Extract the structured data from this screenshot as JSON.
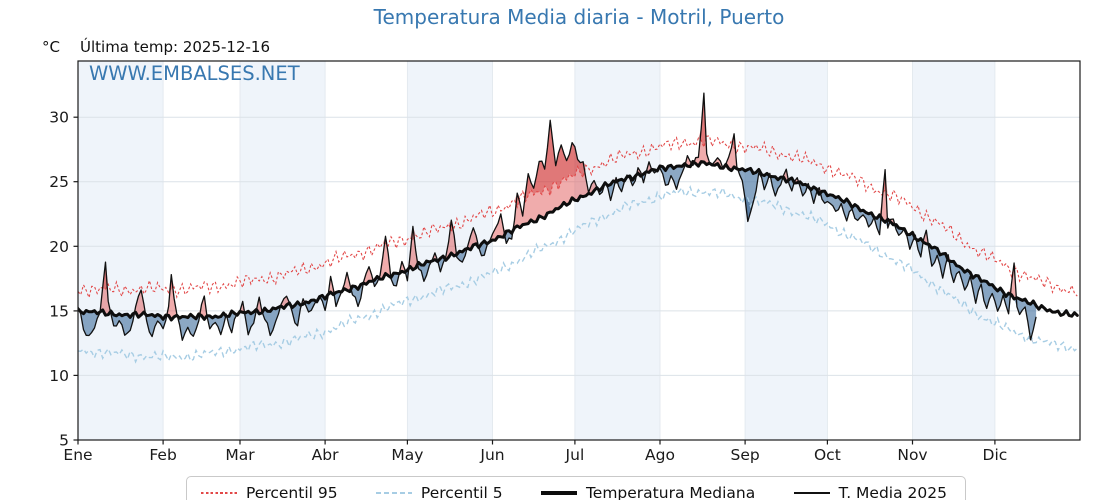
{
  "title": "Temperatura Media diaria - Motril, Puerto",
  "title_color": "#3878b0",
  "header": {
    "unit_label": "°C",
    "last_temp_label": "Última temp: 2025-12-16"
  },
  "watermark": {
    "text": "WWW.EMBALSES.NET",
    "color": "#3878b0"
  },
  "legend": {
    "items": [
      {
        "label": "Percentil 95",
        "style": "p95"
      },
      {
        "label": "Percentil 5",
        "style": "p5"
      },
      {
        "label": "Temperatura Mediana",
        "style": "median"
      },
      {
        "label": "T. Media 2025",
        "style": "t2025"
      }
    ]
  },
  "chart_data": {
    "type": "line",
    "title": "Temperatura Media diaria - Motril, Puerto",
    "ylabel": "°C",
    "x_axis": {
      "tick_labels": [
        "Ene",
        "Feb",
        "Mar",
        "Abr",
        "May",
        "Jun",
        "Jul",
        "Ago",
        "Sep",
        "Oct",
        "Nov",
        "Dic"
      ],
      "month_start_days": [
        0,
        31,
        59,
        90,
        120,
        151,
        181,
        212,
        243,
        273,
        304,
        334
      ],
      "days_in_year": 365
    },
    "y_axis": {
      "ticks": [
        5,
        10,
        15,
        20,
        25,
        30
      ],
      "range": [
        5,
        34.35
      ],
      "unit": "°C"
    },
    "plot_style": {
      "band_colors": [
        "#eff4fa",
        "#ffffff"
      ],
      "hgrid_color": "#dce2e8",
      "vgrid_color": "#e2e8ee",
      "spine_color": "#1a1a1a",
      "tick_label_color": "#1a1a1a"
    },
    "fills": {
      "above_median": "rgba(222,70,70,0.45)",
      "above_p95": "rgba(200,42,42,0.40)",
      "below_median": "rgba(70,115,160,0.62)",
      "below_p5": "rgba(38,80,128,0.45)"
    },
    "jitter": {
      "median": 0.3,
      "p95": 0.7,
      "p5": 0.55,
      "t2025": 0.32
    },
    "series": [
      {
        "id": "median",
        "name": "Temperatura Mediana",
        "color": "#0d0d0d",
        "line": "solid-thick",
        "keypoints": [
          [
            0,
            15.0
          ],
          [
            10,
            14.8
          ],
          [
            20,
            14.7
          ],
          [
            31,
            14.6
          ],
          [
            40,
            14.5
          ],
          [
            50,
            14.6
          ],
          [
            59,
            14.8
          ],
          [
            70,
            15.1
          ],
          [
            80,
            15.5
          ],
          [
            90,
            16.1
          ],
          [
            100,
            16.8
          ],
          [
            110,
            17.5
          ],
          [
            120,
            18.2
          ],
          [
            130,
            18.9
          ],
          [
            140,
            19.6
          ],
          [
            151,
            20.5
          ],
          [
            160,
            21.4
          ],
          [
            170,
            22.4
          ],
          [
            181,
            23.6
          ],
          [
            190,
            24.5
          ],
          [
            200,
            25.3
          ],
          [
            212,
            26.0
          ],
          [
            220,
            26.3
          ],
          [
            228,
            26.4
          ],
          [
            235,
            26.2
          ],
          [
            243,
            25.9
          ],
          [
            250,
            25.6
          ],
          [
            258,
            25.2
          ],
          [
            265,
            24.7
          ],
          [
            273,
            24.1
          ],
          [
            280,
            23.4
          ],
          [
            288,
            22.6
          ],
          [
            296,
            21.8
          ],
          [
            304,
            20.9
          ],
          [
            312,
            19.8
          ],
          [
            320,
            18.6
          ],
          [
            328,
            17.5
          ],
          [
            334,
            16.8
          ],
          [
            342,
            16.0
          ],
          [
            350,
            15.3
          ],
          [
            357,
            14.9
          ],
          [
            364,
            14.6
          ]
        ]
      },
      {
        "id": "p95",
        "name": "Percentil 95",
        "color": "#e24848",
        "line": "dotted",
        "derived_from": "median",
        "offset_keypoints": [
          [
            0,
            1.7
          ],
          [
            31,
            2.1
          ],
          [
            59,
            2.4
          ],
          [
            90,
            2.6
          ],
          [
            120,
            2.4
          ],
          [
            151,
            2.2
          ],
          [
            181,
            1.9
          ],
          [
            212,
            1.7
          ],
          [
            243,
            1.8
          ],
          [
            273,
            2.0
          ],
          [
            304,
            2.2
          ],
          [
            334,
            2.1
          ],
          [
            364,
            1.9
          ]
        ]
      },
      {
        "id": "p5",
        "name": "Percentil 5",
        "color": "#a7cde4",
        "line": "dashed",
        "derived_from": "median",
        "offset_keypoints": [
          [
            0,
            -3.0
          ],
          [
            31,
            -3.2
          ],
          [
            59,
            -2.7
          ],
          [
            90,
            -2.7
          ],
          [
            120,
            -2.4
          ],
          [
            151,
            -2.6
          ],
          [
            181,
            -2.4
          ],
          [
            212,
            -2.1
          ],
          [
            243,
            -2.2
          ],
          [
            273,
            -2.4
          ],
          [
            304,
            -2.8
          ],
          [
            334,
            -2.8
          ],
          [
            364,
            -2.5
          ]
        ]
      },
      {
        "id": "t2025",
        "name": "T. Media 2025",
        "color": "#111111",
        "line": "solid-thin",
        "last_day": 349,
        "keypoints": [
          [
            0,
            15.3
          ],
          [
            2,
            13.6
          ],
          [
            4,
            12.9
          ],
          [
            6,
            13.8
          ],
          [
            8,
            15.0
          ],
          [
            10,
            18.7
          ],
          [
            11,
            16.0
          ],
          [
            13,
            13.6
          ],
          [
            15,
            14.3
          ],
          [
            17,
            13.1
          ],
          [
            19,
            13.4
          ],
          [
            21,
            15.2
          ],
          [
            23,
            16.9
          ],
          [
            25,
            14.1
          ],
          [
            27,
            13.1
          ],
          [
            29,
            14.3
          ],
          [
            31,
            13.6
          ],
          [
            33,
            15.1
          ],
          [
            34,
            17.7
          ],
          [
            36,
            14.6
          ],
          [
            38,
            12.9
          ],
          [
            40,
            13.7
          ],
          [
            42,
            13.0
          ],
          [
            44,
            14.4
          ],
          [
            46,
            16.2
          ],
          [
            48,
            13.4
          ],
          [
            50,
            14.2
          ],
          [
            52,
            13.1
          ],
          [
            54,
            14.6
          ],
          [
            56,
            13.4
          ],
          [
            58,
            14.9
          ],
          [
            60,
            15.6
          ],
          [
            62,
            13.3
          ],
          [
            64,
            14.1
          ],
          [
            66,
            15.9
          ],
          [
            68,
            14.3
          ],
          [
            70,
            13.2
          ],
          [
            72,
            14.0
          ],
          [
            74,
            15.6
          ],
          [
            76,
            16.3
          ],
          [
            78,
            14.9
          ],
          [
            80,
            13.8
          ],
          [
            82,
            16.1
          ],
          [
            84,
            14.7
          ],
          [
            86,
            15.4
          ],
          [
            88,
            16.2
          ],
          [
            90,
            15.0
          ],
          [
            92,
            17.6
          ],
          [
            94,
            15.6
          ],
          [
            96,
            16.4
          ],
          [
            98,
            17.9
          ],
          [
            100,
            16.3
          ],
          [
            102,
            15.3
          ],
          [
            104,
            17.0
          ],
          [
            106,
            18.6
          ],
          [
            108,
            16.9
          ],
          [
            110,
            17.7
          ],
          [
            112,
            20.9
          ],
          [
            114,
            17.6
          ],
          [
            116,
            16.7
          ],
          [
            118,
            18.9
          ],
          [
            120,
            17.3
          ],
          [
            122,
            21.4
          ],
          [
            124,
            18.3
          ],
          [
            126,
            17.5
          ],
          [
            128,
            18.4
          ],
          [
            130,
            19.6
          ],
          [
            132,
            18.1
          ],
          [
            134,
            19.1
          ],
          [
            136,
            21.9
          ],
          [
            138,
            19.3
          ],
          [
            140,
            18.6
          ],
          [
            142,
            20.1
          ],
          [
            144,
            21.6
          ],
          [
            146,
            19.9
          ],
          [
            148,
            19.2
          ],
          [
            150,
            20.6
          ],
          [
            152,
            21.2
          ],
          [
            154,
            22.4
          ],
          [
            156,
            20.3
          ],
          [
            158,
            20.6
          ],
          [
            160,
            24.0
          ],
          [
            162,
            22.6
          ],
          [
            164,
            25.6
          ],
          [
            166,
            24.4
          ],
          [
            168,
            26.6
          ],
          [
            170,
            26.0
          ],
          [
            172,
            29.5
          ],
          [
            174,
            26.4
          ],
          [
            176,
            27.9
          ],
          [
            178,
            26.6
          ],
          [
            180,
            28.1
          ],
          [
            182,
            26.9
          ],
          [
            184,
            26.3
          ],
          [
            186,
            24.2
          ],
          [
            188,
            25.1
          ],
          [
            190,
            23.9
          ],
          [
            192,
            24.9
          ],
          [
            194,
            23.8
          ],
          [
            196,
            25.2
          ],
          [
            198,
            24.3
          ],
          [
            200,
            25.6
          ],
          [
            202,
            24.6
          ],
          [
            204,
            25.9
          ],
          [
            206,
            25.1
          ],
          [
            208,
            26.4
          ],
          [
            210,
            25.7
          ],
          [
            212,
            26.2
          ],
          [
            214,
            24.8
          ],
          [
            216,
            25.3
          ],
          [
            218,
            24.6
          ],
          [
            220,
            25.5
          ],
          [
            222,
            26.9
          ],
          [
            224,
            26.3
          ],
          [
            226,
            27.0
          ],
          [
            228,
            31.7
          ],
          [
            229,
            27.2
          ],
          [
            231,
            26.3
          ],
          [
            233,
            26.9
          ],
          [
            235,
            26.1
          ],
          [
            237,
            26.6
          ],
          [
            239,
            28.8
          ],
          [
            240,
            25.9
          ],
          [
            242,
            25.2
          ],
          [
            244,
            22.0
          ],
          [
            246,
            23.4
          ],
          [
            248,
            25.7
          ],
          [
            250,
            24.6
          ],
          [
            252,
            25.4
          ],
          [
            254,
            23.9
          ],
          [
            256,
            24.8
          ],
          [
            258,
            25.9
          ],
          [
            260,
            24.2
          ],
          [
            262,
            25.6
          ],
          [
            264,
            23.8
          ],
          [
            266,
            24.9
          ],
          [
            268,
            23.4
          ],
          [
            270,
            24.5
          ],
          [
            272,
            23.1
          ],
          [
            274,
            23.5
          ],
          [
            276,
            22.6
          ],
          [
            278,
            23.3
          ],
          [
            280,
            22.1
          ],
          [
            282,
            23.0
          ],
          [
            284,
            21.8
          ],
          [
            286,
            22.6
          ],
          [
            288,
            21.4
          ],
          [
            290,
            22.1
          ],
          [
            292,
            20.9
          ],
          [
            294,
            26.1
          ],
          [
            295,
            21.6
          ],
          [
            297,
            22.2
          ],
          [
            299,
            20.8
          ],
          [
            301,
            21.4
          ],
          [
            303,
            19.9
          ],
          [
            305,
            20.6
          ],
          [
            307,
            19.2
          ],
          [
            309,
            21.3
          ],
          [
            311,
            18.4
          ],
          [
            313,
            19.3
          ],
          [
            315,
            17.8
          ],
          [
            317,
            19.2
          ],
          [
            319,
            17.2
          ],
          [
            321,
            18.1
          ],
          [
            323,
            16.5
          ],
          [
            325,
            17.5
          ],
          [
            327,
            15.8
          ],
          [
            329,
            17.0
          ],
          [
            331,
            15.2
          ],
          [
            333,
            16.5
          ],
          [
            335,
            15.0
          ],
          [
            337,
            16.0
          ],
          [
            339,
            14.9
          ],
          [
            341,
            18.6
          ],
          [
            342,
            15.5
          ],
          [
            343,
            14.6
          ],
          [
            345,
            15.4
          ],
          [
            347,
            12.9
          ],
          [
            349,
            14.4
          ]
        ]
      }
    ]
  }
}
